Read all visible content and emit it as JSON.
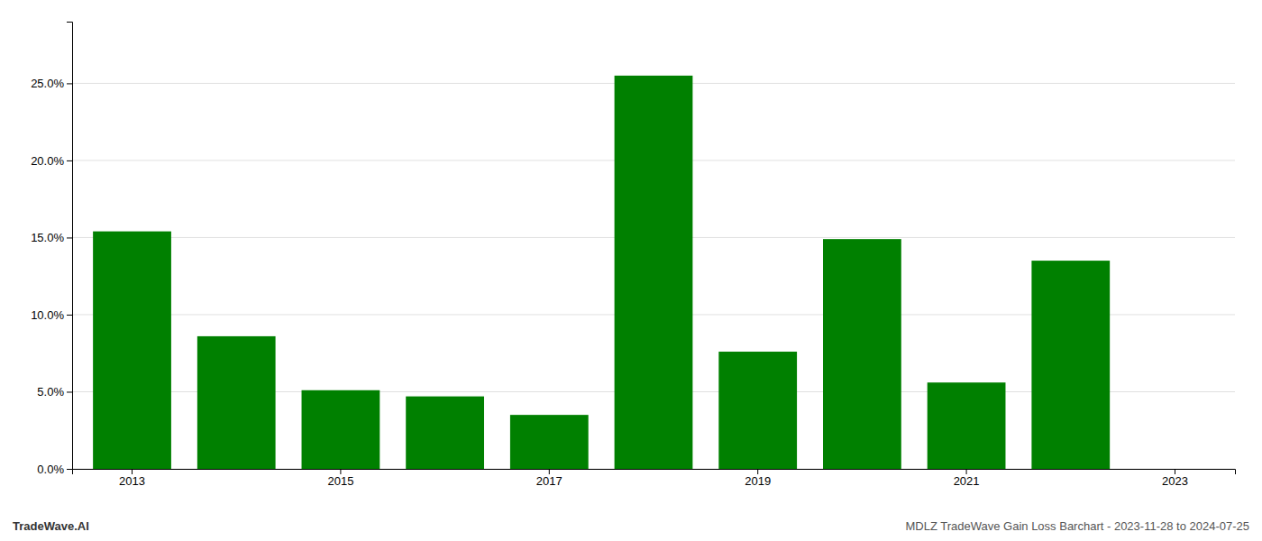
{
  "chart_data": {
    "type": "bar",
    "categories": [
      "2013",
      null,
      "2015",
      null,
      "2017",
      null,
      "2019",
      null,
      "2021",
      null,
      "2023"
    ],
    "values": [
      0.154,
      0.086,
      0.051,
      0.047,
      0.035,
      0.255,
      0.076,
      0.149,
      0.056,
      0.135,
      null
    ],
    "color": "#008000",
    "ylim": [
      0,
      0.29
    ],
    "yticks": [
      {
        "value": 0.0,
        "label": "0.0%"
      },
      {
        "value": 0.05,
        "label": "5.0%"
      },
      {
        "value": 0.1,
        "label": "10.0%"
      },
      {
        "value": 0.15,
        "label": "15.0%"
      },
      {
        "value": 0.2,
        "label": "20.0%"
      },
      {
        "value": 0.25,
        "label": "25.0%"
      }
    ],
    "grid": true,
    "annotations": [
      "TradeWave.AI",
      "MDLZ TradeWave Gain Loss Barchart - 2023-11-28 to 2024-07-25"
    ]
  }
}
